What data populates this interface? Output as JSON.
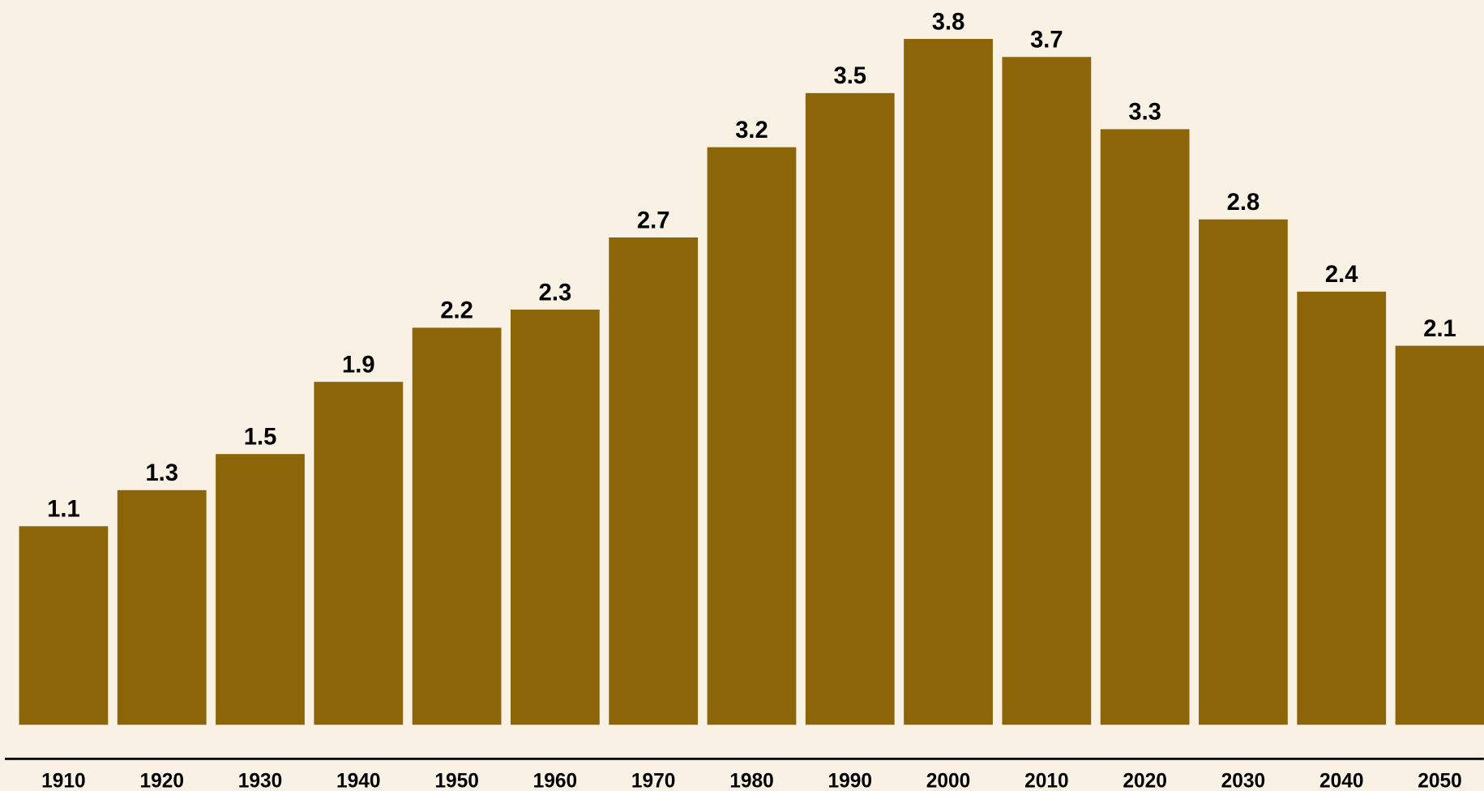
{
  "chart_data": {
    "type": "bar",
    "categories": [
      "1910",
      "1920",
      "1930",
      "1940",
      "1950",
      "1960",
      "1970",
      "1980",
      "1990",
      "2000",
      "2010",
      "2020",
      "2030",
      "2040",
      "2050"
    ],
    "values": [
      1.1,
      1.3,
      1.5,
      1.9,
      2.2,
      2.3,
      2.7,
      3.2,
      3.5,
      3.8,
      3.7,
      3.3,
      2.8,
      2.4,
      2.1
    ],
    "color": "#8b6508",
    "ylim": [
      0,
      4
    ]
  }
}
